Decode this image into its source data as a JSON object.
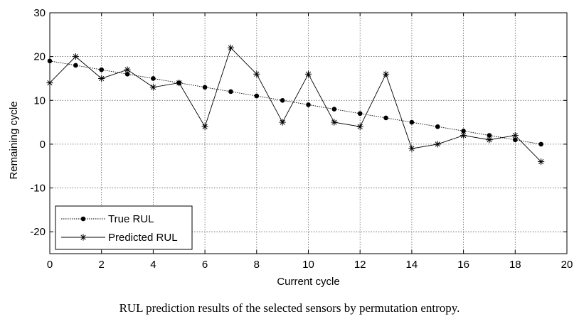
{
  "caption": "RUL prediction results of the selected sensors by permutation entropy.",
  "chart_data": {
    "type": "line",
    "xlabel": "Current cycle",
    "ylabel": "Remaining cycle",
    "xlim": [
      0,
      20
    ],
    "ylim": [
      -25,
      30
    ],
    "xticks": [
      0,
      2,
      4,
      6,
      8,
      10,
      12,
      14,
      16,
      18,
      20
    ],
    "yticks": [
      -20,
      -10,
      0,
      10,
      20,
      30
    ],
    "grid": true,
    "legend_position": "bottom-left",
    "x": [
      0,
      1,
      2,
      3,
      4,
      5,
      6,
      7,
      8,
      9,
      10,
      11,
      12,
      13,
      14,
      15,
      16,
      17,
      18,
      19
    ],
    "series": [
      {
        "name": "True RUL",
        "marker": "dot",
        "values": [
          19,
          18,
          17,
          16,
          15,
          14,
          13,
          12,
          11,
          10,
          9,
          8,
          7,
          6,
          5,
          4,
          3,
          2,
          1,
          0
        ]
      },
      {
        "name": "Predicted RUL",
        "marker": "asterisk",
        "values": [
          14,
          20,
          15,
          17,
          13,
          14,
          4,
          22,
          16,
          5,
          16,
          5,
          4,
          16,
          -1,
          0,
          2,
          1,
          2,
          -4
        ]
      }
    ]
  }
}
